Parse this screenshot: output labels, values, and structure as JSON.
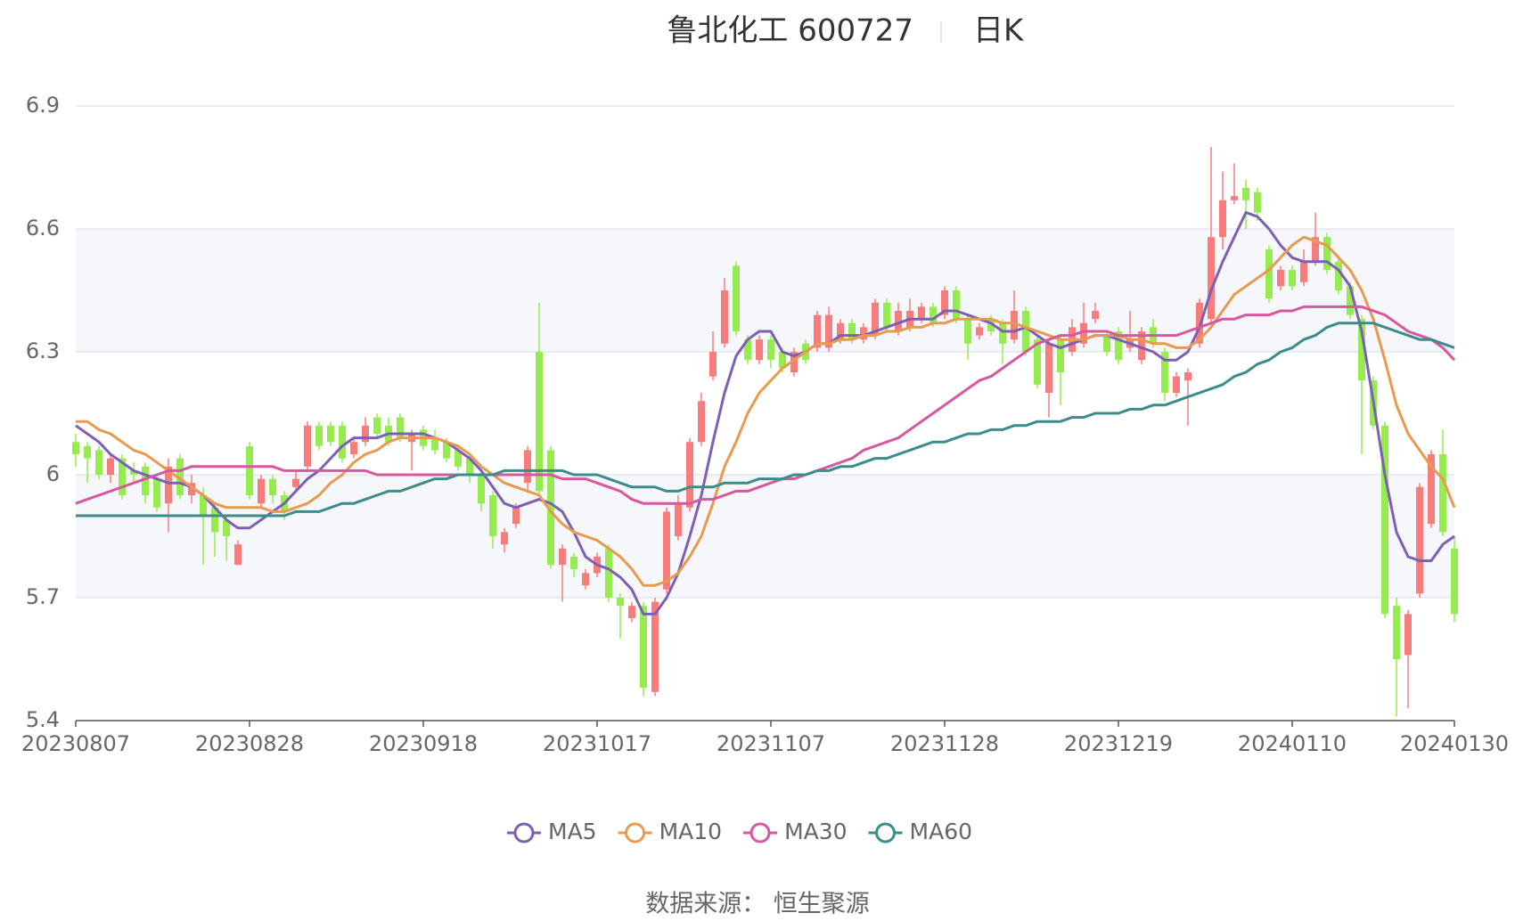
{
  "chart_data": {
    "type": "candlestick",
    "title": "鲁北化工 600727",
    "period": "日K",
    "source": "数据来源： 恒生聚源",
    "categories": [
      "20230807",
      null,
      null,
      null,
      null,
      null,
      null,
      null,
      null,
      null,
      null,
      null,
      null,
      null,
      null,
      "20230828",
      null,
      null,
      null,
      null,
      null,
      null,
      null,
      null,
      null,
      null,
      null,
      null,
      null,
      null,
      "20230918",
      null,
      null,
      null,
      null,
      null,
      null,
      null,
      null,
      null,
      null,
      null,
      null,
      null,
      null,
      "20231017",
      null,
      null,
      null,
      null,
      null,
      null,
      null,
      null,
      null,
      null,
      null,
      null,
      null,
      null,
      "20231107",
      null,
      null,
      null,
      null,
      null,
      null,
      null,
      null,
      null,
      null,
      null,
      null,
      null,
      null,
      "20231128",
      null,
      null,
      null,
      null,
      null,
      null,
      null,
      null,
      null,
      null,
      null,
      null,
      null,
      null,
      "20231219",
      null,
      null,
      null,
      null,
      null,
      null,
      null,
      null,
      null,
      null,
      null,
      null,
      null,
      null,
      "20240110",
      null,
      null,
      null,
      null,
      null,
      null,
      null,
      null,
      null,
      null,
      null,
      null,
      null,
      "20240130"
    ],
    "open": [
      6.08,
      6.07,
      6.06,
      6.0,
      6.04,
      6.01,
      6.02,
      5.99,
      5.93,
      6.04,
      5.95,
      5.95,
      5.92,
      5.89,
      5.78,
      6.07,
      5.93,
      5.99,
      5.95,
      5.97,
      6.02,
      6.12,
      6.12,
      6.12,
      6.05,
      6.08,
      6.14,
      6.12,
      6.14,
      6.08,
      6.11,
      6.09,
      6.08,
      6.06,
      6.04,
      6.0,
      5.95,
      5.83,
      5.88,
      5.98,
      6.3,
      6.06,
      5.78,
      5.8,
      5.73,
      5.76,
      5.82,
      5.7,
      5.65,
      5.68,
      5.47,
      5.72,
      5.85,
      5.92,
      6.08,
      6.24,
      6.32,
      6.51,
      6.33,
      6.28,
      6.33,
      6.3,
      6.25,
      6.32,
      6.31,
      6.31,
      6.33,
      6.37,
      6.33,
      6.34,
      6.42,
      6.35,
      6.36,
      6.38,
      6.41,
      6.39,
      6.45,
      6.38,
      6.34,
      6.38,
      6.37,
      6.33,
      6.4,
      6.33,
      6.2,
      6.33,
      6.3,
      6.32,
      6.38,
      6.34,
      6.35,
      6.31,
      6.28,
      6.36,
      6.3,
      6.2,
      6.23,
      6.32,
      6.38,
      6.58,
      6.67,
      6.7,
      6.69,
      6.55,
      6.46,
      6.5,
      6.47,
      6.52,
      6.58,
      6.52,
      6.46,
      6.38,
      6.23,
      6.12,
      5.68,
      5.56,
      5.71,
      5.88,
      6.05,
      5.82
    ],
    "close": [
      6.05,
      6.04,
      6.0,
      6.04,
      5.95,
      6.0,
      5.95,
      5.92,
      6.02,
      5.95,
      5.98,
      5.9,
      5.86,
      5.85,
      5.83,
      5.95,
      5.99,
      5.95,
      5.91,
      5.99,
      6.12,
      6.07,
      6.08,
      6.04,
      6.08,
      6.12,
      6.1,
      6.08,
      6.09,
      6.1,
      6.07,
      6.06,
      6.04,
      6.02,
      6.0,
      5.93,
      5.85,
      5.86,
      5.92,
      6.06,
      5.96,
      5.78,
      5.82,
      5.77,
      5.76,
      5.8,
      5.7,
      5.68,
      5.68,
      5.48,
      5.69,
      5.91,
      5.93,
      6.08,
      6.18,
      6.3,
      6.45,
      6.35,
      6.28,
      6.33,
      6.28,
      6.26,
      6.3,
      6.28,
      6.39,
      6.39,
      6.37,
      6.33,
      6.36,
      6.42,
      6.36,
      6.4,
      6.4,
      6.41,
      6.37,
      6.45,
      6.38,
      6.32,
      6.36,
      6.35,
      6.32,
      6.4,
      6.3,
      6.22,
      6.32,
      6.25,
      6.36,
      6.37,
      6.4,
      6.3,
      6.28,
      6.33,
      6.35,
      6.32,
      6.2,
      6.24,
      6.25,
      6.42,
      6.58,
      6.67,
      6.68,
      6.67,
      6.64,
      6.43,
      6.5,
      6.46,
      6.52,
      6.58,
      6.5,
      6.45,
      6.39,
      6.23,
      6.12,
      5.66,
      5.55,
      5.66,
      5.97,
      6.05,
      5.86,
      5.66
    ],
    "high": [
      6.1,
      6.08,
      6.07,
      6.05,
      6.05,
      6.03,
      6.03,
      6.0,
      6.04,
      6.05,
      6.0,
      5.97,
      5.93,
      5.9,
      5.84,
      6.08,
      6.0,
      6.0,
      5.96,
      6.01,
      6.13,
      6.13,
      6.13,
      6.13,
      6.09,
      6.14,
      6.15,
      6.14,
      6.15,
      6.11,
      6.12,
      6.11,
      6.09,
      6.07,
      6.05,
      6.01,
      5.96,
      5.87,
      5.93,
      6.07,
      6.42,
      6.07,
      5.83,
      5.81,
      5.77,
      5.81,
      5.83,
      5.71,
      5.69,
      5.69,
      5.7,
      5.92,
      5.95,
      6.09,
      6.2,
      6.35,
      6.48,
      6.52,
      6.34,
      6.34,
      6.34,
      6.31,
      6.31,
      6.33,
      6.4,
      6.41,
      6.38,
      6.38,
      6.37,
      6.43,
      6.43,
      6.42,
      6.43,
      6.42,
      6.42,
      6.46,
      6.46,
      6.39,
      6.37,
      6.39,
      6.38,
      6.45,
      6.41,
      6.34,
      6.33,
      6.34,
      6.38,
      6.42,
      6.42,
      6.35,
      6.36,
      6.4,
      6.36,
      6.38,
      6.31,
      6.25,
      6.26,
      6.43,
      6.8,
      6.74,
      6.76,
      6.72,
      6.7,
      6.56,
      6.51,
      6.51,
      6.55,
      6.64,
      6.59,
      6.53,
      6.47,
      6.39,
      6.24,
      6.13,
      5.7,
      5.67,
      5.98,
      6.06,
      6.11,
      5.85
    ],
    "low": [
      6.02,
      5.98,
      5.99,
      5.98,
      5.94,
      5.98,
      5.93,
      5.91,
      5.86,
      5.94,
      5.93,
      5.78,
      5.8,
      5.79,
      5.78,
      5.94,
      5.92,
      5.93,
      5.89,
      5.96,
      6.01,
      6.06,
      6.07,
      6.03,
      6.04,
      6.07,
      6.09,
      6.07,
      6.08,
      6.01,
      6.06,
      6.05,
      6.03,
      6.01,
      5.98,
      5.91,
      5.82,
      5.81,
      5.87,
      5.96,
      5.95,
      5.77,
      5.69,
      5.75,
      5.72,
      5.75,
      5.69,
      5.6,
      5.64,
      5.46,
      5.46,
      5.71,
      5.84,
      5.91,
      6.07,
      6.23,
      6.31,
      6.34,
      6.27,
      6.27,
      6.26,
      6.25,
      6.24,
      6.27,
      6.3,
      6.3,
      6.32,
      6.32,
      6.32,
      6.33,
      6.35,
      6.34,
      6.35,
      6.37,
      6.36,
      6.38,
      6.37,
      6.28,
      6.33,
      6.34,
      6.27,
      6.32,
      6.29,
      6.21,
      6.14,
      6.17,
      6.29,
      6.31,
      6.37,
      6.29,
      6.27,
      6.3,
      6.27,
      6.31,
      6.18,
      6.19,
      6.12,
      6.31,
      6.37,
      6.55,
      6.66,
      6.6,
      6.62,
      6.42,
      6.45,
      6.45,
      6.46,
      6.51,
      6.49,
      6.44,
      6.38,
      6.05,
      6.11,
      5.65,
      5.41,
      5.43,
      5.7,
      5.87,
      5.85,
      5.64
    ],
    "up_color": "#f87c7c",
    "down_color": "#96ec4f",
    "series": [
      {
        "name": "MA5",
        "color": "#7d5fb5",
        "values": [
          6.12,
          6.1,
          6.08,
          6.05,
          6.03,
          6.01,
          6.0,
          5.99,
          5.98,
          5.98,
          5.97,
          5.95,
          5.92,
          5.89,
          5.87,
          5.87,
          5.89,
          5.91,
          5.93,
          5.96,
          5.99,
          6.01,
          6.04,
          6.07,
          6.09,
          6.09,
          6.09,
          6.1,
          6.1,
          6.1,
          6.1,
          6.09,
          6.08,
          6.06,
          6.04,
          6.01,
          5.97,
          5.93,
          5.92,
          5.93,
          5.94,
          5.93,
          5.91,
          5.86,
          5.8,
          5.78,
          5.77,
          5.75,
          5.72,
          5.66,
          5.66,
          5.7,
          5.76,
          5.85,
          5.95,
          6.08,
          6.2,
          6.29,
          6.33,
          6.35,
          6.35,
          6.3,
          6.29,
          6.3,
          6.32,
          6.32,
          6.34,
          6.34,
          6.34,
          6.35,
          6.36,
          6.37,
          6.38,
          6.38,
          6.38,
          6.4,
          6.4,
          6.39,
          6.38,
          6.37,
          6.35,
          6.35,
          6.36,
          6.34,
          6.32,
          6.31,
          6.32,
          6.33,
          6.34,
          6.34,
          6.33,
          6.32,
          6.31,
          6.3,
          6.28,
          6.28,
          6.3,
          6.36,
          6.45,
          6.52,
          6.58,
          6.64,
          6.63,
          6.6,
          6.56,
          6.53,
          6.52,
          6.52,
          6.52,
          6.5,
          6.46,
          6.35,
          6.18,
          6.0,
          5.86,
          5.8,
          5.79,
          5.79,
          5.83,
          5.85
        ]
      },
      {
        "name": "MA10",
        "color": "#e89a4e",
        "values": [
          6.13,
          6.13,
          6.11,
          6.1,
          6.08,
          6.06,
          6.05,
          6.03,
          6.01,
          5.99,
          5.97,
          5.95,
          5.93,
          5.92,
          5.92,
          5.92,
          5.92,
          5.91,
          5.91,
          5.92,
          5.93,
          5.95,
          5.98,
          6.0,
          6.03,
          6.05,
          6.06,
          6.08,
          6.09,
          6.09,
          6.09,
          6.09,
          6.08,
          6.07,
          6.05,
          6.02,
          6.0,
          5.98,
          5.97,
          5.96,
          5.95,
          5.91,
          5.88,
          5.86,
          5.85,
          5.84,
          5.82,
          5.8,
          5.77,
          5.73,
          5.73,
          5.74,
          5.76,
          5.8,
          5.85,
          5.93,
          6.02,
          6.08,
          6.15,
          6.2,
          6.23,
          6.26,
          6.28,
          6.3,
          6.32,
          6.32,
          6.33,
          6.33,
          6.34,
          6.34,
          6.35,
          6.35,
          6.36,
          6.36,
          6.37,
          6.37,
          6.38,
          6.38,
          6.38,
          6.38,
          6.37,
          6.37,
          6.36,
          6.35,
          6.34,
          6.33,
          6.33,
          6.33,
          6.34,
          6.34,
          6.34,
          6.33,
          6.33,
          6.32,
          6.32,
          6.31,
          6.31,
          6.33,
          6.36,
          6.4,
          6.44,
          6.46,
          6.48,
          6.5,
          6.53,
          6.56,
          6.58,
          6.57,
          6.56,
          6.53,
          6.5,
          6.45,
          6.38,
          6.28,
          6.17,
          6.1,
          6.06,
          6.02,
          5.99,
          5.92
        ]
      },
      {
        "name": "MA30",
        "color": "#d9579f",
        "values": [
          5.93,
          5.94,
          5.95,
          5.96,
          5.97,
          5.98,
          5.99,
          6.0,
          6.01,
          6.01,
          6.02,
          6.02,
          6.02,
          6.02,
          6.02,
          6.02,
          6.02,
          6.02,
          6.01,
          6.01,
          6.01,
          6.01,
          6.01,
          6.01,
          6.01,
          6.01,
          6.0,
          6.0,
          6.0,
          6.0,
          6.0,
          6.0,
          6.0,
          6.0,
          6.0,
          6.0,
          6.0,
          6.0,
          6.0,
          6.0,
          6.0,
          6.0,
          5.99,
          5.99,
          5.99,
          5.98,
          5.97,
          5.96,
          5.94,
          5.93,
          5.93,
          5.93,
          5.93,
          5.93,
          5.94,
          5.94,
          5.95,
          5.96,
          5.96,
          5.97,
          5.98,
          5.99,
          5.99,
          6.0,
          6.01,
          6.02,
          6.03,
          6.04,
          6.06,
          6.07,
          6.08,
          6.09,
          6.11,
          6.13,
          6.15,
          6.17,
          6.19,
          6.21,
          6.23,
          6.24,
          6.26,
          6.28,
          6.3,
          6.32,
          6.33,
          6.34,
          6.34,
          6.35,
          6.35,
          6.35,
          6.34,
          6.34,
          6.34,
          6.34,
          6.34,
          6.34,
          6.35,
          6.36,
          6.37,
          6.38,
          6.38,
          6.39,
          6.39,
          6.39,
          6.4,
          6.4,
          6.41,
          6.41,
          6.41,
          6.41,
          6.41,
          6.41,
          6.4,
          6.39,
          6.37,
          6.35,
          6.34,
          6.33,
          6.31,
          6.28
        ]
      },
      {
        "name": "MA60",
        "color": "#3b8c8c",
        "values": [
          5.9,
          5.9,
          5.9,
          5.9,
          5.9,
          5.9,
          5.9,
          5.9,
          5.9,
          5.9,
          5.9,
          5.9,
          5.9,
          5.9,
          5.9,
          5.9,
          5.9,
          5.9,
          5.9,
          5.91,
          5.91,
          5.91,
          5.92,
          5.93,
          5.93,
          5.94,
          5.95,
          5.96,
          5.96,
          5.97,
          5.98,
          5.99,
          5.99,
          6.0,
          6.0,
          6.0,
          6.0,
          6.01,
          6.01,
          6.01,
          6.01,
          6.01,
          6.01,
          6.0,
          6.0,
          6.0,
          5.99,
          5.98,
          5.97,
          5.97,
          5.97,
          5.96,
          5.96,
          5.97,
          5.97,
          5.97,
          5.98,
          5.98,
          5.98,
          5.99,
          5.99,
          5.99,
          6.0,
          6.0,
          6.01,
          6.01,
          6.02,
          6.02,
          6.03,
          6.04,
          6.04,
          6.05,
          6.06,
          6.07,
          6.08,
          6.08,
          6.09,
          6.1,
          6.1,
          6.11,
          6.11,
          6.12,
          6.12,
          6.13,
          6.13,
          6.13,
          6.14,
          6.14,
          6.15,
          6.15,
          6.15,
          6.16,
          6.16,
          6.17,
          6.17,
          6.18,
          6.19,
          6.2,
          6.21,
          6.22,
          6.24,
          6.25,
          6.27,
          6.28,
          6.3,
          6.31,
          6.33,
          6.34,
          6.36,
          6.37,
          6.37,
          6.37,
          6.37,
          6.36,
          6.35,
          6.34,
          6.33,
          6.33,
          6.32,
          6.31
        ]
      }
    ],
    "ylim": [
      5.4,
      6.9
    ],
    "yticks": [
      5.4,
      5.7,
      6,
      6.3,
      6.6,
      6.9
    ],
    "grid": true
  }
}
